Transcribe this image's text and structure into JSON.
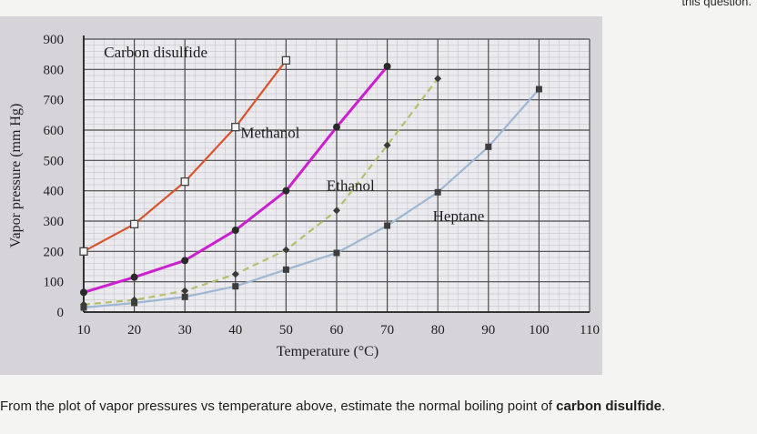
{
  "header_fragment": "this question.",
  "question": {
    "text": "From the plot of vapor pressures vs temperature above, estimate the normal boiling point of ",
    "bold": "carbon disulfide",
    "end": "."
  },
  "chart_data": {
    "type": "line",
    "xlabel": "Temperature (°C)",
    "ylabel": "Vapor pressure (mm Hg)",
    "xlim": [
      10,
      110
    ],
    "ylim": [
      0,
      900
    ],
    "xticks": [
      10,
      20,
      30,
      40,
      50,
      60,
      70,
      80,
      90,
      100,
      110
    ],
    "yticks": [
      0,
      100,
      200,
      300,
      400,
      500,
      600,
      700,
      800,
      900
    ],
    "grid": true,
    "series": [
      {
        "name": "Carbon disulfide",
        "color": "#d9532e",
        "marker": "open-square",
        "x": [
          10,
          20,
          30,
          40,
          50
        ],
        "y": [
          200,
          290,
          430,
          610,
          830
        ]
      },
      {
        "name": "Methanol",
        "color": "#cc1fd0",
        "marker": "filled-circle",
        "x": [
          10,
          20,
          30,
          40,
          50,
          60,
          70
        ],
        "y": [
          65,
          115,
          170,
          270,
          400,
          610,
          810
        ]
      },
      {
        "name": "Ethanol",
        "color": "#b6bf6a",
        "marker": "diamond",
        "x": [
          10,
          20,
          30,
          40,
          50,
          60,
          70,
          80
        ],
        "y": [
          25,
          40,
          70,
          125,
          205,
          335,
          550,
          770
        ]
      },
      {
        "name": "Heptane",
        "color": "#9db7d4",
        "marker": "filled-square",
        "x": [
          10,
          20,
          30,
          40,
          50,
          60,
          70,
          80,
          90,
          100
        ],
        "y": [
          15,
          30,
          50,
          85,
          140,
          195,
          285,
          395,
          545,
          735
        ]
      }
    ]
  }
}
